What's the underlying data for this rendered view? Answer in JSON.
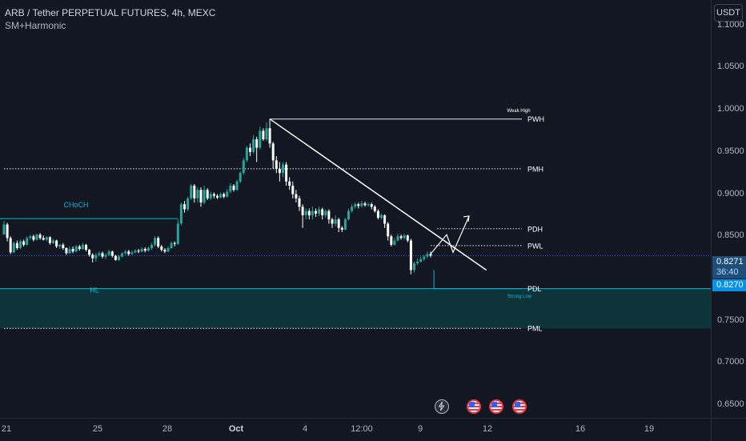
{
  "legend": {
    "title": "ARB / Tether PERPETUAL FUTURES, 4h, MEXC",
    "indicator": "SM+Harmonic"
  },
  "currency": "USDT",
  "colors": {
    "background": "#131722",
    "bull": "#26a69a",
    "bear": "#ffffff",
    "level_line": "#ffffff",
    "structure_line": "#00bcd4",
    "zone_fill": "#0e3a40",
    "price_tag_bg": "#1e4e79",
    "price_tag_bg2": "#0091ea"
  },
  "price_tag": {
    "last_price": "0.8271",
    "countdown": "36:40",
    "line_price": "0.8270"
  },
  "chart_data": {
    "type": "candlestick",
    "y_axis": {
      "range": [
        0.635,
        1.13
      ],
      "ticks": [
        "1.1000",
        "1.0500",
        "1.0000",
        "0.9500",
        "0.9000",
        "0.8500",
        "0.7500",
        "0.7000",
        "0.6500"
      ],
      "tick_values": [
        1.1,
        1.05,
        1.0,
        0.95,
        0.9,
        0.85,
        0.75,
        0.7,
        0.65
      ]
    },
    "x_axis": {
      "ticks": [
        "21",
        "25",
        "28",
        "Oct",
        "4",
        "12:00",
        "9",
        "12",
        "16",
        "19"
      ],
      "tick_positions": [
        8,
        122,
        209,
        295,
        381,
        452,
        525,
        609,
        725,
        811
      ]
    },
    "levels": [
      {
        "label": "PWH",
        "price": 0.989,
        "style": "solid",
        "start_index": 81
      },
      {
        "label": "PMH",
        "price": 0.93,
        "style": "dotted",
        "start_index": 0
      },
      {
        "label": "PDH",
        "price": 0.859,
        "style": "dotted",
        "start_index": 132
      },
      {
        "label": "PWL",
        "price": 0.839,
        "style": "dotted",
        "start_index": 130
      },
      {
        "label": "PDL",
        "price": 0.788,
        "style": "solid",
        "start_index": 131
      },
      {
        "label": "PML",
        "price": 0.741,
        "style": "dotted",
        "start_index": 0
      }
    ],
    "structure": [
      {
        "label": "CHoCH",
        "price": 0.871,
        "from_index": 0,
        "to_index": 53
      },
      {
        "label": "HL",
        "price": 0.829,
        "from_index": 0,
        "to_index": 218
      }
    ],
    "annotations": [
      {
        "label": "Weak High",
        "price": 1.0
      },
      {
        "label": "Strong Low",
        "price": 0.78
      }
    ],
    "zone": {
      "top": 0.788,
      "bottom": 0.741
    },
    "trendline": {
      "from": {
        "index": 81,
        "price": 0.989
      },
      "to": {
        "index": 147,
        "price": 0.81
      }
    },
    "projection": [
      [
        0.832,
        0.852
      ],
      [
        0.852,
        0.83
      ],
      [
        0.83,
        0.875
      ]
    ],
    "current_price": 0.827,
    "candles": [
      [
        0.852,
        0.864,
        0.856,
        0.868
      ],
      [
        0.864,
        0.848,
        0.844,
        0.866
      ],
      [
        0.848,
        0.831,
        0.829,
        0.85
      ],
      [
        0.831,
        0.842,
        0.83,
        0.844
      ],
      [
        0.842,
        0.836,
        0.834,
        0.845
      ],
      [
        0.836,
        0.844,
        0.835,
        0.846
      ],
      [
        0.844,
        0.84,
        0.838,
        0.846
      ],
      [
        0.84,
        0.848,
        0.839,
        0.85
      ],
      [
        0.848,
        0.85,
        0.846,
        0.852
      ],
      [
        0.85,
        0.846,
        0.844,
        0.852
      ],
      [
        0.846,
        0.852,
        0.845,
        0.853
      ],
      [
        0.852,
        0.848,
        0.846,
        0.854
      ],
      [
        0.848,
        0.846,
        0.845,
        0.851
      ],
      [
        0.846,
        0.849,
        0.844,
        0.85
      ],
      [
        0.849,
        0.842,
        0.84,
        0.85
      ],
      [
        0.842,
        0.845,
        0.841,
        0.847
      ],
      [
        0.845,
        0.838,
        0.836,
        0.846
      ],
      [
        0.838,
        0.84,
        0.835,
        0.841
      ],
      [
        0.84,
        0.836,
        0.834,
        0.842
      ],
      [
        0.836,
        0.83,
        0.828,
        0.837
      ],
      [
        0.83,
        0.835,
        0.829,
        0.838
      ],
      [
        0.835,
        0.832,
        0.83,
        0.838
      ],
      [
        0.832,
        0.838,
        0.831,
        0.84
      ],
      [
        0.838,
        0.835,
        0.833,
        0.84
      ],
      [
        0.835,
        0.84,
        0.834,
        0.842
      ],
      [
        0.84,
        0.834,
        0.832,
        0.841
      ],
      [
        0.834,
        0.828,
        0.826,
        0.835
      ],
      [
        0.828,
        0.824,
        0.819,
        0.83
      ],
      [
        0.824,
        0.828,
        0.82,
        0.83
      ],
      [
        0.828,
        0.83,
        0.826,
        0.832
      ],
      [
        0.83,
        0.826,
        0.824,
        0.832
      ],
      [
        0.826,
        0.828,
        0.823,
        0.83
      ],
      [
        0.828,
        0.832,
        0.827,
        0.834
      ],
      [
        0.832,
        0.827,
        0.825,
        0.833
      ],
      [
        0.827,
        0.822,
        0.821,
        0.828
      ],
      [
        0.822,
        0.826,
        0.821,
        0.828
      ],
      [
        0.826,
        0.83,
        0.825,
        0.831
      ],
      [
        0.83,
        0.832,
        0.828,
        0.834
      ],
      [
        0.832,
        0.829,
        0.827,
        0.834
      ],
      [
        0.829,
        0.831,
        0.828,
        0.833
      ],
      [
        0.831,
        0.833,
        0.83,
        0.835
      ],
      [
        0.833,
        0.832,
        0.83,
        0.835
      ],
      [
        0.832,
        0.835,
        0.831,
        0.837
      ],
      [
        0.835,
        0.833,
        0.831,
        0.837
      ],
      [
        0.833,
        0.836,
        0.832,
        0.838
      ],
      [
        0.836,
        0.84,
        0.834,
        0.842
      ],
      [
        0.84,
        0.848,
        0.838,
        0.85
      ],
      [
        0.848,
        0.838,
        0.836,
        0.85
      ],
      [
        0.838,
        0.834,
        0.832,
        0.84
      ],
      [
        0.834,
        0.832,
        0.83,
        0.836
      ],
      [
        0.832,
        0.836,
        0.831,
        0.838
      ],
      [
        0.836,
        0.842,
        0.835,
        0.844
      ],
      [
        0.842,
        0.841,
        0.838,
        0.844
      ],
      [
        0.841,
        0.865,
        0.84,
        0.87
      ],
      [
        0.865,
        0.888,
        0.863,
        0.89
      ],
      [
        0.888,
        0.882,
        0.878,
        0.892
      ],
      [
        0.882,
        0.895,
        0.88,
        0.897
      ],
      [
        0.895,
        0.91,
        0.893,
        0.912
      ],
      [
        0.91,
        0.895,
        0.89,
        0.912
      ],
      [
        0.895,
        0.905,
        0.89,
        0.908
      ],
      [
        0.905,
        0.89,
        0.885,
        0.908
      ],
      [
        0.89,
        0.905,
        0.888,
        0.91
      ],
      [
        0.905,
        0.895,
        0.893,
        0.907
      ],
      [
        0.895,
        0.9,
        0.893,
        0.903
      ],
      [
        0.9,
        0.898,
        0.895,
        0.902
      ],
      [
        0.898,
        0.896,
        0.894,
        0.9
      ],
      [
        0.896,
        0.9,
        0.895,
        0.902
      ],
      [
        0.9,
        0.897,
        0.895,
        0.902
      ],
      [
        0.897,
        0.903,
        0.896,
        0.906
      ],
      [
        0.903,
        0.91,
        0.901,
        0.913
      ],
      [
        0.91,
        0.905,
        0.903,
        0.912
      ],
      [
        0.905,
        0.915,
        0.904,
        0.917
      ],
      [
        0.915,
        0.925,
        0.913,
        0.927
      ],
      [
        0.925,
        0.94,
        0.923,
        0.943
      ],
      [
        0.94,
        0.955,
        0.938,
        0.957
      ],
      [
        0.955,
        0.95,
        0.945,
        0.96
      ],
      [
        0.95,
        0.965,
        0.948,
        0.97
      ],
      [
        0.965,
        0.955,
        0.938,
        0.968
      ],
      [
        0.955,
        0.975,
        0.953,
        0.98
      ],
      [
        0.975,
        0.965,
        0.963,
        0.978
      ],
      [
        0.965,
        0.978,
        0.963,
        0.985
      ],
      [
        0.978,
        0.96,
        0.955,
        0.989
      ],
      [
        0.96,
        0.94,
        0.93,
        0.962
      ],
      [
        0.94,
        0.93,
        0.925,
        0.945
      ],
      [
        0.93,
        0.925,
        0.915,
        0.938
      ],
      [
        0.925,
        0.935,
        0.92,
        0.938
      ],
      [
        0.935,
        0.915,
        0.91,
        0.938
      ],
      [
        0.915,
        0.91,
        0.905,
        0.92
      ],
      [
        0.91,
        0.9,
        0.895,
        0.915
      ],
      [
        0.9,
        0.895,
        0.89,
        0.905
      ],
      [
        0.895,
        0.885,
        0.88,
        0.898
      ],
      [
        0.885,
        0.875,
        0.86,
        0.888
      ],
      [
        0.875,
        0.88,
        0.87,
        0.883
      ],
      [
        0.88,
        0.875,
        0.87,
        0.883
      ],
      [
        0.875,
        0.88,
        0.87,
        0.885
      ],
      [
        0.88,
        0.877,
        0.873,
        0.883
      ],
      [
        0.877,
        0.882,
        0.874,
        0.885
      ],
      [
        0.882,
        0.875,
        0.87,
        0.884
      ],
      [
        0.875,
        0.88,
        0.872,
        0.882
      ],
      [
        0.88,
        0.87,
        0.865,
        0.882
      ],
      [
        0.87,
        0.865,
        0.86,
        0.872
      ],
      [
        0.865,
        0.87,
        0.862,
        0.875
      ],
      [
        0.87,
        0.86,
        0.855,
        0.872
      ],
      [
        0.86,
        0.858,
        0.855,
        0.862
      ],
      [
        0.858,
        0.87,
        0.857,
        0.872
      ],
      [
        0.87,
        0.88,
        0.869,
        0.883
      ],
      [
        0.88,
        0.885,
        0.878,
        0.888
      ],
      [
        0.885,
        0.888,
        0.883,
        0.89
      ],
      [
        0.888,
        0.886,
        0.883,
        0.89
      ],
      [
        0.886,
        0.889,
        0.884,
        0.892
      ],
      [
        0.889,
        0.887,
        0.885,
        0.891
      ],
      [
        0.887,
        0.888,
        0.885,
        0.89
      ],
      [
        0.888,
        0.885,
        0.882,
        0.89
      ],
      [
        0.885,
        0.88,
        0.878,
        0.887
      ],
      [
        0.88,
        0.872,
        0.87,
        0.882
      ],
      [
        0.872,
        0.875,
        0.87,
        0.877
      ],
      [
        0.875,
        0.865,
        0.86,
        0.876
      ],
      [
        0.865,
        0.85,
        0.845,
        0.867
      ],
      [
        0.85,
        0.84,
        0.838,
        0.852
      ],
      [
        0.84,
        0.845,
        0.839,
        0.848
      ],
      [
        0.845,
        0.85,
        0.844,
        0.853
      ],
      [
        0.85,
        0.848,
        0.846,
        0.852
      ],
      [
        0.848,
        0.851,
        0.846,
        0.853
      ],
      [
        0.851,
        0.845,
        0.843,
        0.852
      ],
      [
        0.845,
        0.81,
        0.805,
        0.847
      ],
      [
        0.81,
        0.818,
        0.807,
        0.82
      ],
      [
        0.818,
        0.82,
        0.816,
        0.824
      ],
      [
        0.82,
        0.823,
        0.819,
        0.826
      ],
      [
        0.823,
        0.826,
        0.821,
        0.828
      ],
      [
        0.826,
        0.829,
        0.824,
        0.832
      ],
      [
        0.829,
        0.8271,
        0.825,
        0.832
      ]
    ]
  },
  "events": [
    {
      "name": "lightning-event-icon"
    },
    {
      "name": "us-flag-event-icon-1"
    },
    {
      "name": "us-flag-event-icon-2"
    },
    {
      "name": "us-flag-event-icon-3"
    }
  ]
}
